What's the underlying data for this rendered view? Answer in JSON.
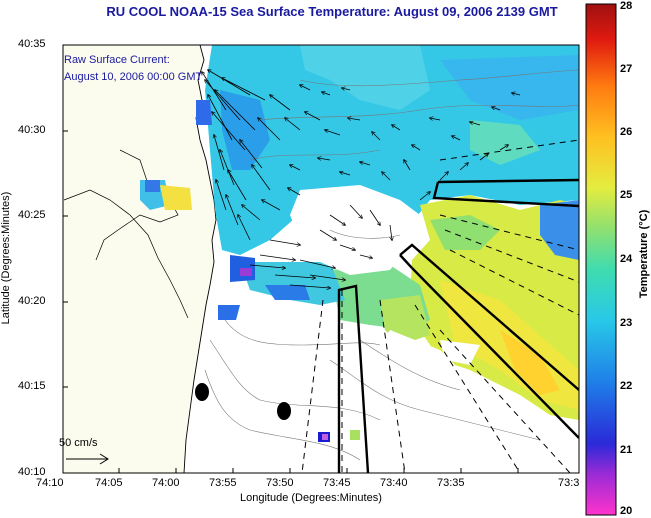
{
  "title": "RU COOL  NOAA-15  Sea Surface Temperature:  August 09, 2006 2139 GMT",
  "current_legend": {
    "line1": "Raw Surface Current:",
    "line2": "August 10, 2006 00:00 GMT"
  },
  "scale_bar_label": "50 cm/s",
  "x_axis": {
    "title": "Longitude (Degrees:Minutes)",
    "ticks": [
      "74:10",
      "74:05",
      "74:00",
      "73:55",
      "73:50",
      "73:45",
      "73:40",
      "73:35",
      "73:3"
    ]
  },
  "y_axis": {
    "title": "Latitude (Degrees:Minutes)",
    "ticks": [
      "40:35",
      "40:30",
      "40:25",
      "40:20",
      "40:15",
      "40:10"
    ]
  },
  "colorbar": {
    "title": "Temperature (°C)",
    "min": 20,
    "max": 28,
    "ticks": [
      "28",
      "27",
      "26",
      "25",
      "24",
      "23",
      "22",
      "21",
      "20"
    ]
  },
  "colors": {
    "title_text": "#1a1aa0",
    "land": "#fbfbee",
    "coastline": "#000000"
  }
}
